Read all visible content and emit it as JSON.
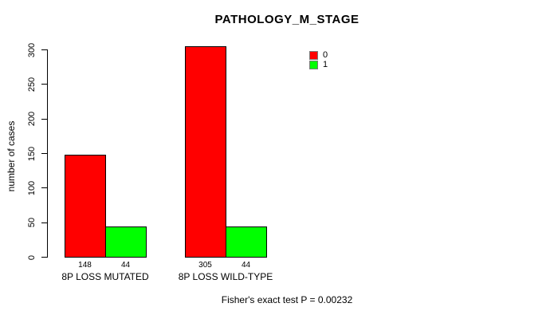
{
  "chart_data": {
    "type": "bar",
    "title": "PATHOLOGY_M_STAGE",
    "xlabel": "",
    "ylabel": "number of cases",
    "ylim": [
      0,
      300
    ],
    "yticks": [
      0,
      50,
      100,
      150,
      200,
      250,
      300
    ],
    "categories": [
      "8P LOSS MUTATED",
      "8P LOSS WILD-TYPE"
    ],
    "series": [
      {
        "name": "0",
        "color": "#ff0000",
        "values": [
          148,
          305
        ]
      },
      {
        "name": "1",
        "color": "#00ff00",
        "values": [
          44,
          44
        ]
      }
    ],
    "bar_value_labels": [
      [
        "148",
        "44"
      ],
      [
        "305",
        "44"
      ]
    ],
    "legend_position": "top-right",
    "grid": false,
    "background_color": "#ffffff",
    "footnote": "Fisher's exact test P = 0.00232"
  }
}
